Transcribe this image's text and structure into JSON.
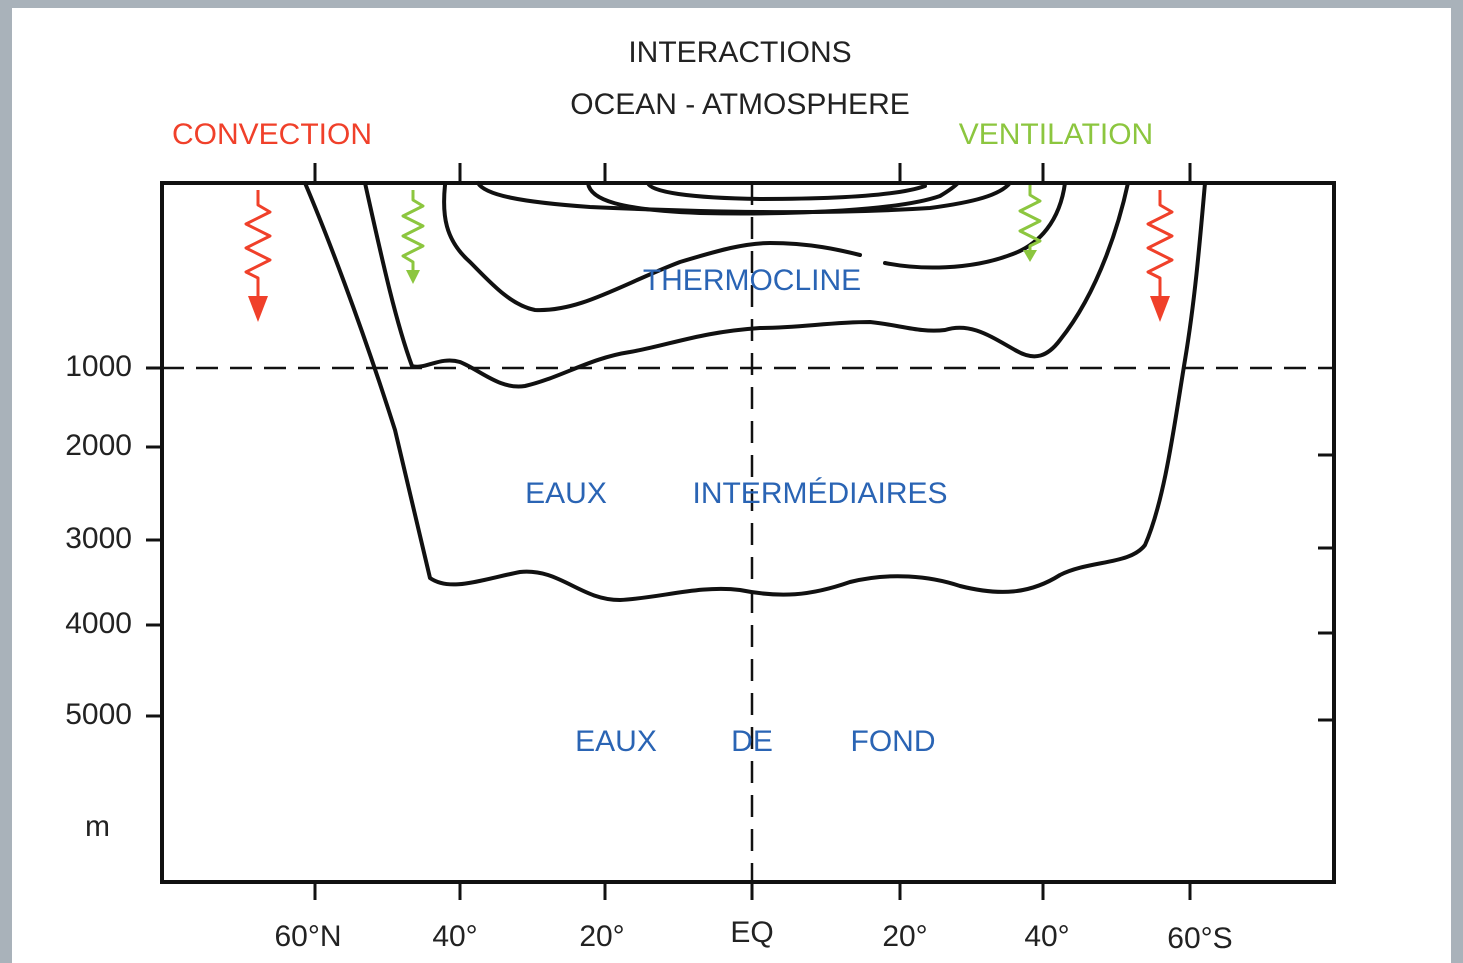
{
  "title": [
    "INTERACTIONS",
    "OCEAN - ATMOSPHERE"
  ],
  "side_labels": {
    "left": "CONVECTION",
    "right": "VENTILATION"
  },
  "zones": {
    "thermocline": "THERMOCLINE",
    "intermediate": [
      "EAUX",
      "INTERMÉDIAIRES"
    ],
    "bottom": [
      "EAUX",
      "DE",
      "FOND"
    ]
  },
  "y_axis": {
    "ticks": [
      "1000",
      "2000",
      "3000",
      "4000",
      "5000"
    ],
    "unit": "m"
  },
  "x_axis": {
    "ticks": [
      "60°N",
      "40°",
      "20°",
      "EQ",
      "20°",
      "40°",
      "60°S"
    ]
  }
}
